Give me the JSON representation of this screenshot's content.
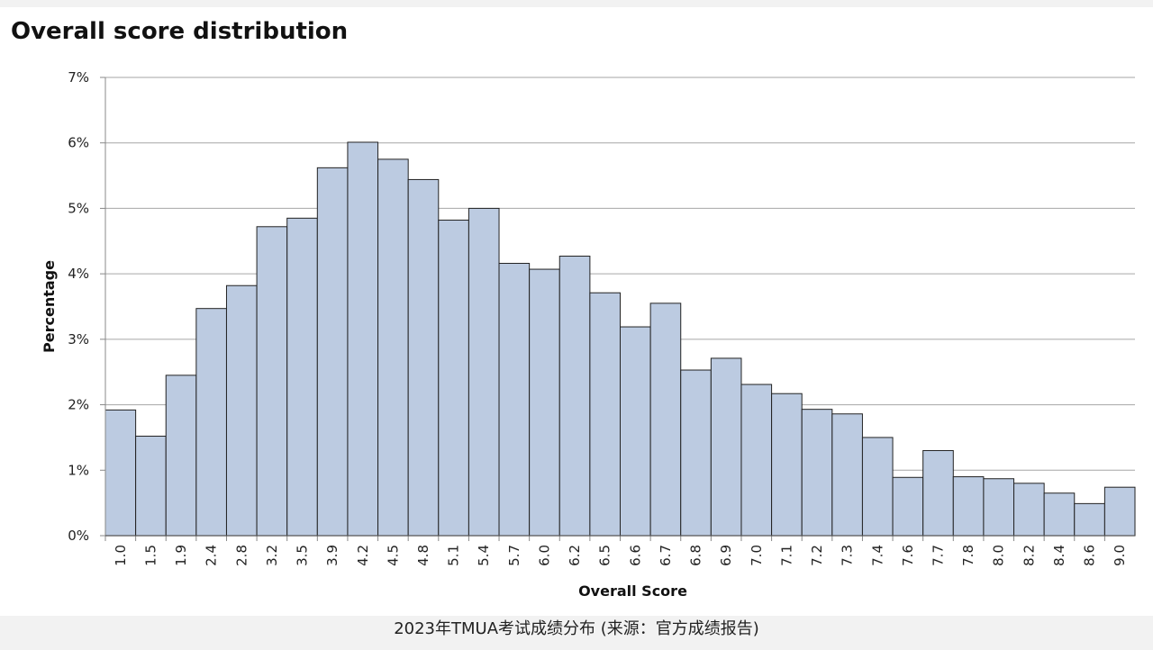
{
  "caption": "2023年TMUA考试成绩分布 (来源：官方成绩报告)",
  "colors": {
    "bar_fill": "#bccbe1",
    "bar_stroke": "#222222",
    "grid": "#a6a6a6"
  },
  "chart_data": {
    "type": "bar",
    "title": "Overall score distribution",
    "xlabel": "Overall Score",
    "ylabel": "Percentage",
    "ylim": [
      0,
      7
    ],
    "yticks": [
      "0%",
      "1%",
      "2%",
      "3%",
      "4%",
      "5%",
      "6%",
      "7%"
    ],
    "grid": true,
    "categories": [
      "1.0",
      "1.5",
      "1.9",
      "2.4",
      "2.8",
      "3.2",
      "3.5",
      "3.9",
      "4.2",
      "4.5",
      "4.8",
      "5.1",
      "5.4",
      "5.7",
      "6.0",
      "6.2",
      "6.5",
      "6.6",
      "6.7",
      "6.8",
      "6.9",
      "7.0",
      "7.1",
      "7.2",
      "7.3",
      "7.4",
      "7.6",
      "7.7",
      "7.8",
      "8.0",
      "8.2",
      "8.4",
      "8.6",
      "9.0"
    ],
    "values": [
      1.92,
      1.52,
      2.45,
      3.47,
      3.82,
      4.72,
      4.85,
      5.62,
      6.01,
      5.75,
      5.44,
      4.82,
      5.0,
      4.16,
      4.07,
      4.27,
      3.71,
      3.19,
      3.55,
      2.53,
      2.71,
      2.31,
      2.17,
      1.93,
      1.86,
      1.5,
      0.89,
      1.3,
      0.9,
      0.87,
      0.8,
      0.65,
      0.49,
      0.74
    ]
  }
}
